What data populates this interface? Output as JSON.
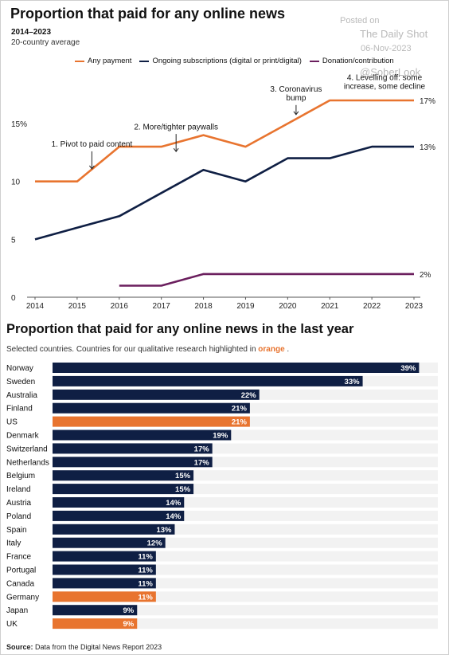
{
  "watermark": {
    "posted_on": "Posted on",
    "publisher": "The Daily Shot",
    "date": "06-Nov-2023",
    "handle": "@SoberLook"
  },
  "line_section": {
    "title": "Proportion that paid for any online news",
    "subtitle_years": "2014–2023",
    "subtitle_desc": "20-country average"
  },
  "bar_section": {
    "title": "Proportion that paid for any online news in the last year",
    "subtitle_prefix": "Selected countries. Countries for our qualitative research highlighted in",
    "subtitle_highlight": "orange",
    "subtitle_suffix": "."
  },
  "source": {
    "label": "Source:",
    "text": "Data from the Digital News Report 2023"
  },
  "colors": {
    "orange": "#e8742f",
    "navy": "#0f1f44",
    "purple": "#6b1f5e",
    "track": "#f2f2f2"
  },
  "chart_data": [
    {
      "type": "line",
      "title": "Proportion that paid for any online news",
      "subtitle": "2014–2023 · 20-country average",
      "x": [
        2014,
        2015,
        2016,
        2017,
        2018,
        2019,
        2020,
        2021,
        2022,
        2023
      ],
      "ylim": [
        0,
        17
      ],
      "yticks": [
        0,
        5,
        10,
        15
      ],
      "ytick_labels": [
        "0",
        "5",
        "10",
        "15%"
      ],
      "grid": false,
      "legend_position": "top",
      "series": [
        {
          "name": "Any payment",
          "color": "#e8742f",
          "values": [
            10,
            10,
            13,
            13,
            14,
            13,
            15,
            17,
            17,
            17
          ],
          "end_label": "17%"
        },
        {
          "name": "Ongoing subscriptions (digital or print/digital)",
          "color": "#0f1f44",
          "values": [
            5,
            6,
            7,
            9,
            11,
            10,
            12,
            12,
            13,
            13
          ],
          "end_label": "13%"
        },
        {
          "name": "Donation/contribution",
          "color": "#6b1f5e",
          "values": [
            null,
            null,
            1,
            1,
            2,
            2,
            2,
            2,
            2,
            2
          ],
          "end_label": "2%"
        }
      ],
      "annotations": [
        {
          "lines": [
            "1. Pivot to paid content"
          ],
          "x": 2015.35,
          "y": 13
        },
        {
          "lines": [
            "2. More/tighter paywalls"
          ],
          "x": 2017.35,
          "y": 14.5
        },
        {
          "lines": [
            "3. Coronavirus",
            "bump"
          ],
          "x": 2020.2,
          "y": 17
        },
        {
          "lines": [
            "4. Levelling off: some",
            "increase, some decline"
          ],
          "x": 2022.3,
          "y": 18
        }
      ]
    },
    {
      "type": "bar",
      "orientation": "horizontal",
      "title": "Proportion that paid for any online news in the last year",
      "xlim": [
        0,
        41
      ],
      "categories": [
        "Norway",
        "Sweden",
        "Australia",
        "Finland",
        "US",
        "Denmark",
        "Switzerland",
        "Netherlands",
        "Belgium",
        "Ireland",
        "Austria",
        "Poland",
        "Spain",
        "Italy",
        "France",
        "Portugal",
        "Canada",
        "Germany",
        "Japan",
        "UK"
      ],
      "values": [
        39,
        33,
        22,
        21,
        21,
        19,
        17,
        17,
        15,
        15,
        14,
        14,
        13,
        12,
        11,
        11,
        11,
        11,
        9,
        9
      ],
      "value_labels": [
        "39%",
        "33%",
        "22%",
        "21%",
        "21%",
        "19%",
        "17%",
        "17%",
        "15%",
        "15%",
        "14%",
        "14%",
        "13%",
        "12%",
        "11%",
        "11%",
        "11%",
        "11%",
        "9%",
        "9%"
      ],
      "highlighted": [
        "US",
        "Germany",
        "UK"
      ]
    }
  ]
}
